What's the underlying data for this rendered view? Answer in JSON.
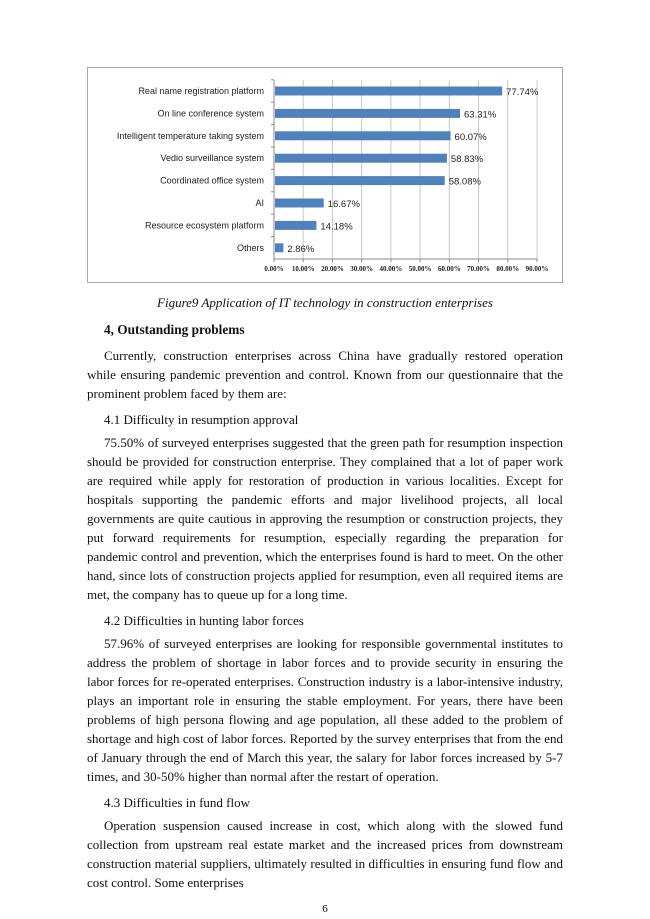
{
  "chart_data": {
    "type": "bar",
    "orientation": "horizontal",
    "categories": [
      "Real name registration platform",
      "On line conference system",
      "Intelligent temperature taking system",
      "Vedio surveillance system",
      "Coordinated office system",
      "AI",
      "Resource ecosystem platform",
      "Others"
    ],
    "values": [
      77.74,
      63.31,
      60.07,
      58.83,
      58.08,
      16.67,
      14.18,
      2.86
    ],
    "value_labels": [
      "77.74%",
      "63.31%",
      "60.07%",
      "58.83%",
      "58.08%",
      "16.67%",
      "14.18%",
      "2.86%"
    ],
    "xlim": [
      0,
      90
    ],
    "x_ticks": [
      "0.00%",
      "10.00%",
      "20.00%",
      "30.00%",
      "40.00%",
      "50.00%",
      "60.00%",
      "70.00%",
      "80.00%",
      "90.00%"
    ],
    "grid": "vertical",
    "bar_color": "#4f81bd",
    "legend": "none"
  },
  "caption": "Figure9 Application of IT technology in construction enterprises",
  "heading": "4, Outstanding problems",
  "paragraphs": [
    "Currently, construction enterprises across China have gradually restored operation while ensuring pandemic prevention and control. Known from our questionnaire that the prominent problem faced by them are:",
    "4.1 Difficulty in resumption approval",
    "75.50% of surveyed enterprises suggested that the green path for resumption inspection should be provided for construction enterprise. They complained that a lot of paper work are required while apply for restoration of production in various localities. Except for hospitals supporting the pandemic efforts and major livelihood projects, all local governments are quite cautious in approving the resumption or construction projects, they put forward requirements for resumption, especially regarding the preparation for pandemic control and prevention, which the enterprises found is hard to meet. On the other hand, since lots of construction projects applied for resumption, even all required items are met, the company has to queue up for a long time.",
    "4.2 Difficulties in hunting labor forces",
    "57.96% of surveyed enterprises are looking for responsible governmental institutes to address the problem of shortage in labor forces and to provide security in ensuring the labor forces for re-operated enterprises. Construction industry is a labor-intensive industry, plays an important role in ensuring the stable employment. For years, there have been problems of high persona flowing and age population, all these added to the problem of shortage and high cost of labor forces. Reported by the survey enterprises that from the end of January through the end of March this year, the salary for labor forces increased by 5-7 times, and 30-50% higher than normal after the restart of operation.",
    "4.3 Difficulties in fund flow",
    "Operation suspension caused increase in cost, which along with the slowed fund collection from upstream real estate market and the increased prices from downstream construction material suppliers, ultimately resulted in difficulties in ensuring fund flow and cost control. Some enterprises"
  ],
  "page_number": "6"
}
